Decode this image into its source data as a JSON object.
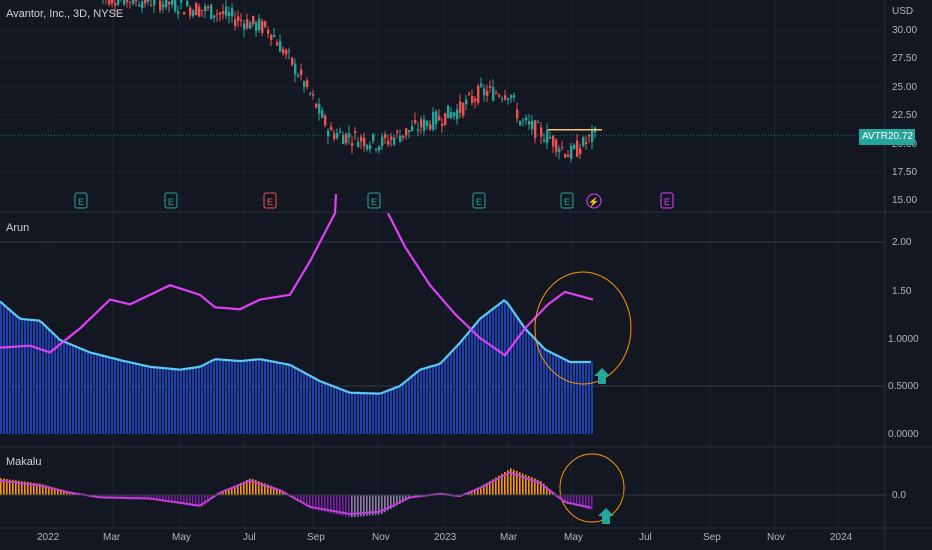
{
  "header": {
    "title": "Avantor, Inc., 3D, NYSE"
  },
  "price_pane": {
    "currency": "USD",
    "ticks": [
      "30.00",
      "27.50",
      "25.00",
      "22.50",
      "20.00",
      "17.50",
      "15.00"
    ],
    "last_symbol": "AVTR",
    "last_price": "20.72",
    "event_markers": [
      "E",
      "E",
      "E",
      "E",
      "E",
      "E",
      "⚡",
      "E"
    ]
  },
  "arun_pane": {
    "label": "Arun",
    "ticks": [
      "2.00",
      "1.50",
      "1.0000",
      "0.5000",
      "0.0000"
    ]
  },
  "makalu_pane": {
    "label": "Makalu",
    "ticks": [
      "0.0"
    ]
  },
  "time_axis": [
    "2022",
    "Mar",
    "May",
    "Jul",
    "Sep",
    "Nov",
    "2023",
    "Mar",
    "May",
    "Jul",
    "Sep",
    "Nov",
    "2024"
  ],
  "colors": {
    "background": "#131722",
    "up": "#26a69a",
    "down": "#ef5350",
    "histogram": "#1e3fae",
    "line_blue": "#5bc8f5",
    "line_magenta": "#e040fb",
    "orange": "#ff9800",
    "purple": "#7b1fa2",
    "price_line": "#f7c56e"
  },
  "icons": [
    "arrow-up-icon",
    "lightning-icon",
    "earnings-icon"
  ]
}
